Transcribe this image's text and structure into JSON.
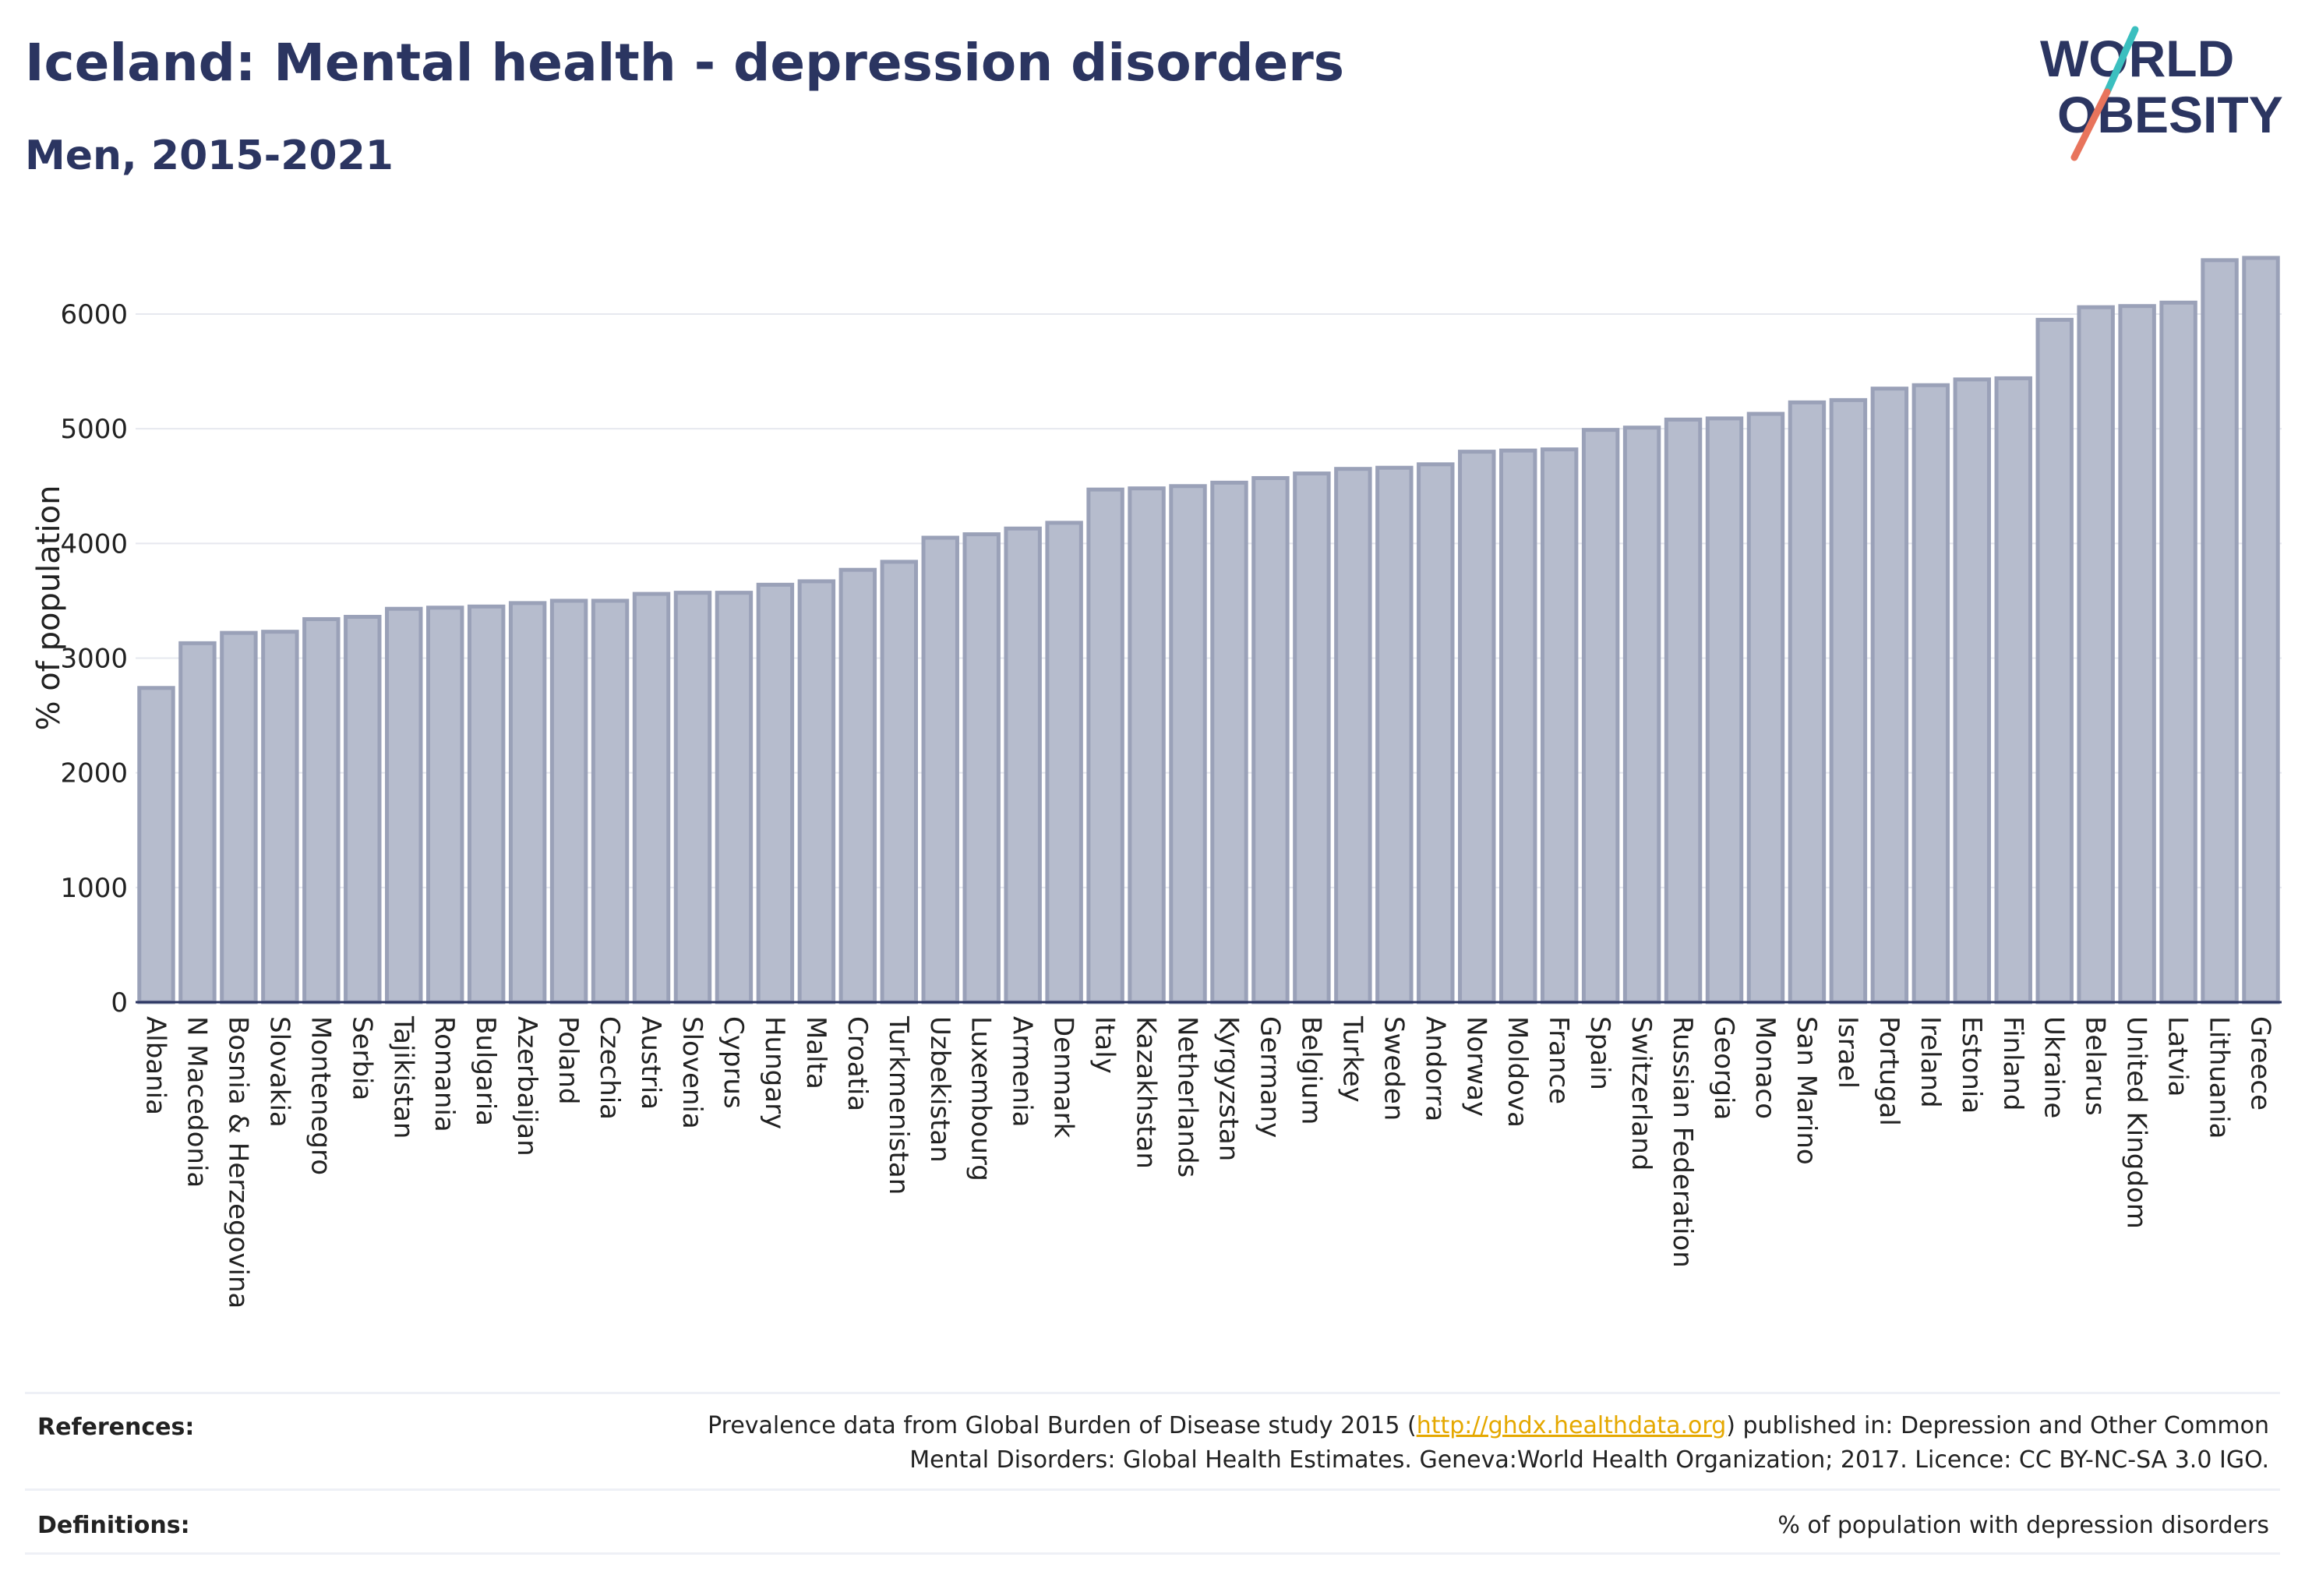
{
  "header": {
    "title": "Iceland: Mental health - depression disorders",
    "subtitle": "Men, 2015-2021"
  },
  "logo": {
    "line1": "WORLD",
    "line2": "OBESITY",
    "color_text": "#2b3561",
    "color_slash_top": "#3bbfbf",
    "color_slash_bottom": "#e8745c"
  },
  "chart_data": {
    "type": "bar",
    "ylabel": "% of population",
    "ylim": [
      0,
      6700
    ],
    "yticks": [
      0,
      1000,
      2000,
      3000,
      4000,
      5000,
      6000
    ],
    "grid": true,
    "bar_color": "#b6bccd",
    "bar_edge_color": "#9aa1b8",
    "categories": [
      "Albania",
      "N Macedonia",
      "Bosnia & Herzegovina",
      "Slovakia",
      "Montenegro",
      "Serbia",
      "Tajikistan",
      "Romania",
      "Bulgaria",
      "Azerbaijan",
      "Poland",
      "Czechia",
      "Austria",
      "Slovenia",
      "Cyprus",
      "Hungary",
      "Malta",
      "Croatia",
      "Turkmenistan",
      "Uzbekistan",
      "Luxembourg",
      "Armenia",
      "Denmark",
      "Italy",
      "Kazakhstan",
      "Netherlands",
      "Kyrgyzstan",
      "Germany",
      "Belgium",
      "Turkey",
      "Sweden",
      "Andorra",
      "Norway",
      "Moldova",
      "France",
      "Spain",
      "Switzerland",
      "Russian Federation",
      "Georgia",
      "Monaco",
      "San Marino",
      "Israel",
      "Portugal",
      "Ireland",
      "Estonia",
      "Finland",
      "Ukraine",
      "Belarus",
      "United Kingdom",
      "Latvia",
      "Lithuania",
      "Greece"
    ],
    "values": [
      2740,
      3130,
      3220,
      3230,
      3340,
      3360,
      3430,
      3440,
      3450,
      3480,
      3500,
      3500,
      3560,
      3570,
      3570,
      3640,
      3670,
      3770,
      3840,
      4050,
      4080,
      4130,
      4180,
      4470,
      4480,
      4500,
      4530,
      4570,
      4610,
      4650,
      4660,
      4690,
      4800,
      4810,
      4820,
      4990,
      5010,
      5080,
      5090,
      5130,
      5230,
      5250,
      5350,
      5380,
      5430,
      5440,
      5950,
      6060,
      6070,
      6100,
      6470,
      6490
    ]
  },
  "footer": {
    "references_label": "References:",
    "references_line1_pre": "Prevalence data from Global Burden of Disease study 2015 (",
    "references_link": "http://ghdx.healthdata.org",
    "references_line1_post": ") published in: Depression and Other Common",
    "references_line2": "Mental Disorders: Global Health Estimates. Geneva:World Health Organization; 2017. Licence: CC BY-NC-SA 3.0 IGO.",
    "definitions_label": "Definitions:",
    "definitions_text": "% of population with depression disorders"
  }
}
